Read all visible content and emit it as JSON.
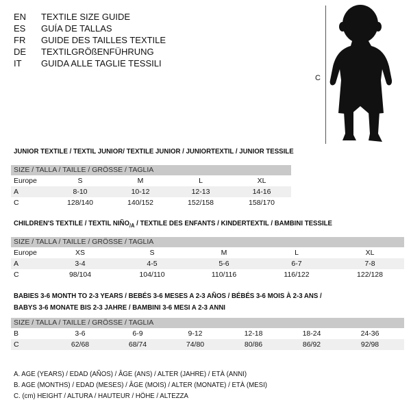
{
  "languages": [
    {
      "code": "EN",
      "text": "TEXTILE SIZE GUIDE"
    },
    {
      "code": "ES",
      "text": "GUÍA DE TALLAS"
    },
    {
      "code": "FR",
      "text": "GUIDE DES TAILLES TEXTILE"
    },
    {
      "code": "DE",
      "text": "TEXTILGRÖßENFÜHRUNG"
    },
    {
      "code": "IT",
      "text": "GUIDA ALLE TAGLIE TESSILI"
    }
  ],
  "figure": {
    "measure_label": "C",
    "icon": "child-silhouette"
  },
  "size_header": "SIZE / TALLA / TAILLE / GRÖSSE / TAGLIA",
  "junior": {
    "title": "JUNIOR TEXTILE / TEXTIL JUNIOR/ TEXTILE JUNIOR / JUNIORTEXTIL / JUNIOR TESSILE",
    "rows": [
      {
        "label": "Europe",
        "values": [
          "S",
          "M",
          "L",
          "XL"
        ]
      },
      {
        "label": "A",
        "values": [
          "8-10",
          "10-12",
          "12-13",
          "14-16"
        ]
      },
      {
        "label": "C",
        "values": [
          "128/140",
          "140/152",
          "152/158",
          "158/170"
        ]
      }
    ]
  },
  "children": {
    "title_a": "CHILDREN'S TEXTILE / TEXTIL NIÑO",
    "title_sub": "/A",
    "title_b": " / TEXTILE DES ENFANTS / KINDERTEXTIL / BAMBINI TESSILE",
    "rows": [
      {
        "label": "Europe",
        "values": [
          "XS",
          "S",
          "M",
          "L",
          "XL"
        ]
      },
      {
        "label": "A",
        "values": [
          "3-4",
          "4-5",
          "5-6",
          "6-7",
          "7-8"
        ]
      },
      {
        "label": "C",
        "values": [
          "98/104",
          "104/110",
          "110/116",
          "116/122",
          "122/128"
        ]
      }
    ]
  },
  "babies": {
    "title_line1": "BABIES 3-6 MONTH TO 2-3 YEARS / BEBÉS 3-6 MESES A 2-3 AÑOS / BÉBÉS 3-6 MOIS À 2-3 ANS /",
    "title_line2": "BABYS 3-6 MONATE BIS 2-3 JAHRE / BAMBINI 3-6 MESI A 2-3 ANNI",
    "rows": [
      {
        "label": "B",
        "values": [
          "3-6",
          "6-9",
          "9-12",
          "12-18",
          "18-24",
          "24-36"
        ]
      },
      {
        "label": "C",
        "values": [
          "62/68",
          "68/74",
          "74/80",
          "80/86",
          "86/92",
          "92/98"
        ]
      }
    ]
  },
  "legend": [
    "A. AGE (YEARS) / EDAD (AÑOS) / ÂGE (ANS) / ALTER (JAHRE) / ETÀ (ANNI)",
    "B. AGE (MONTHS) / EDAD (MESES) / ÂGE (MOIS) / ALTER (MONATE) / ETÀ (MESI)",
    "C. (cm) HEIGHT / ALTURA / HAUTEUR / HÖHE / ALTEZZA"
  ]
}
